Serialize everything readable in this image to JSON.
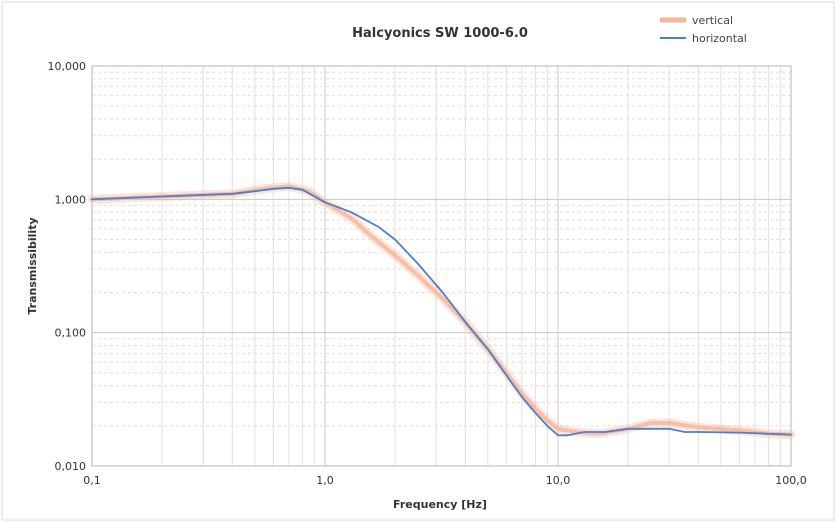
{
  "chart_data": {
    "type": "line",
    "title": "Halcyonics SW 1000-6.0",
    "xlabel": "Frequency [Hz]",
    "ylabel": "Transmissibility",
    "x_scale": "log",
    "y_scale": "log",
    "xlim": [
      0.1,
      100
    ],
    "ylim": [
      0.01,
      10
    ],
    "x_ticks": [
      0.1,
      1,
      10,
      100
    ],
    "x_tick_labels": [
      "0,1",
      "1,0",
      "10,0",
      "100,0"
    ],
    "y_ticks": [
      0.01,
      0.1,
      1,
      10
    ],
    "y_tick_labels": [
      "0,010",
      "0,100",
      "1,000",
      "10,000"
    ],
    "grid": true,
    "legend_position": "top-right",
    "series": [
      {
        "name": "vertical",
        "color": "#f7b79b",
        "x": [
          0.1,
          0.2,
          0.4,
          0.55,
          0.7,
          0.85,
          1.0,
          1.3,
          1.6,
          2.0,
          2.5,
          3.2,
          4.0,
          5.0,
          6.0,
          7.0,
          8.0,
          9.0,
          10.0,
          12.0,
          15.0,
          20.0,
          25.0,
          30.0,
          40.0,
          60.0,
          80.0,
          100.0
        ],
        "y": [
          1.0,
          1.05,
          1.1,
          1.2,
          1.25,
          1.15,
          0.95,
          0.72,
          0.52,
          0.38,
          0.27,
          0.18,
          0.12,
          0.075,
          0.05,
          0.035,
          0.027,
          0.022,
          0.019,
          0.018,
          0.0175,
          0.019,
          0.021,
          0.021,
          0.0195,
          0.0185,
          0.0175,
          0.0172
        ]
      },
      {
        "name": "horizontal",
        "color": "#4a7fd4",
        "x": [
          0.1,
          0.2,
          0.4,
          0.5,
          0.6,
          0.7,
          0.8,
          1.0,
          1.3,
          1.7,
          2.0,
          2.5,
          3.2,
          4.0,
          5.0,
          6.0,
          7.0,
          8.0,
          9.0,
          10.0,
          11.0,
          13.0,
          16.0,
          20.0,
          25.0,
          30.0,
          35.0,
          40.0,
          60.0,
          100.0
        ],
        "y": [
          1.0,
          1.05,
          1.1,
          1.15,
          1.2,
          1.22,
          1.18,
          0.95,
          0.8,
          0.62,
          0.5,
          0.33,
          0.2,
          0.12,
          0.075,
          0.048,
          0.033,
          0.025,
          0.02,
          0.017,
          0.017,
          0.018,
          0.018,
          0.019,
          0.019,
          0.019,
          0.018,
          0.018,
          0.0178,
          0.0172
        ]
      }
    ]
  }
}
